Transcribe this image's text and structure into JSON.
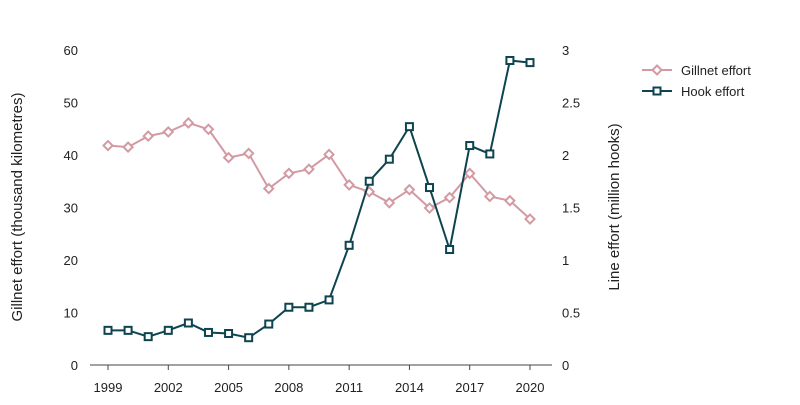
{
  "chart_data": {
    "type": "line",
    "title": "",
    "x": [
      1999,
      2000,
      2001,
      2002,
      2003,
      2004,
      2005,
      2006,
      2007,
      2008,
      2009,
      2010,
      2011,
      2012,
      2013,
      2014,
      2015,
      2016,
      2017,
      2018,
      2019,
      2020
    ],
    "x_tick_labels": [
      "1999",
      "2002",
      "2005",
      "2008",
      "2011",
      "2014",
      "2017",
      "2020"
    ],
    "xlabel": "",
    "y_left": {
      "label": "Gillnet effort (thousand kilometres)",
      "ylim": [
        0,
        60
      ],
      "tick_labels": [
        "0",
        "10",
        "20",
        "30",
        "40",
        "50",
        "60"
      ]
    },
    "y_right": {
      "label": "Line effort (million hooks)",
      "ylim": [
        0,
        3
      ],
      "tick_labels": [
        "0",
        "0.5",
        "1",
        "1.5",
        "2",
        "2.5",
        "3"
      ]
    },
    "series": [
      {
        "name": "Gillnet effort",
        "axis": "left",
        "color": "#d39aa3",
        "marker": "diamond",
        "values": [
          41.8,
          41.5,
          43.6,
          44.4,
          46.1,
          44.9,
          39.5,
          40.3,
          33.6,
          36.5,
          37.3,
          40.1,
          34.3,
          33.0,
          30.9,
          33.4,
          29.9,
          31.9,
          36.5,
          32.1,
          31.3,
          27.8
        ]
      },
      {
        "name": "Hook effort",
        "axis": "right",
        "color": "#0d4450",
        "marker": "square",
        "values": [
          0.33,
          0.33,
          0.27,
          0.33,
          0.4,
          0.31,
          0.3,
          0.26,
          0.39,
          0.55,
          0.55,
          0.62,
          1.14,
          1.75,
          1.96,
          2.27,
          1.69,
          1.1,
          2.09,
          2.01,
          2.9,
          2.88
        ]
      }
    ],
    "grid": false,
    "legend_position": "right-top"
  }
}
